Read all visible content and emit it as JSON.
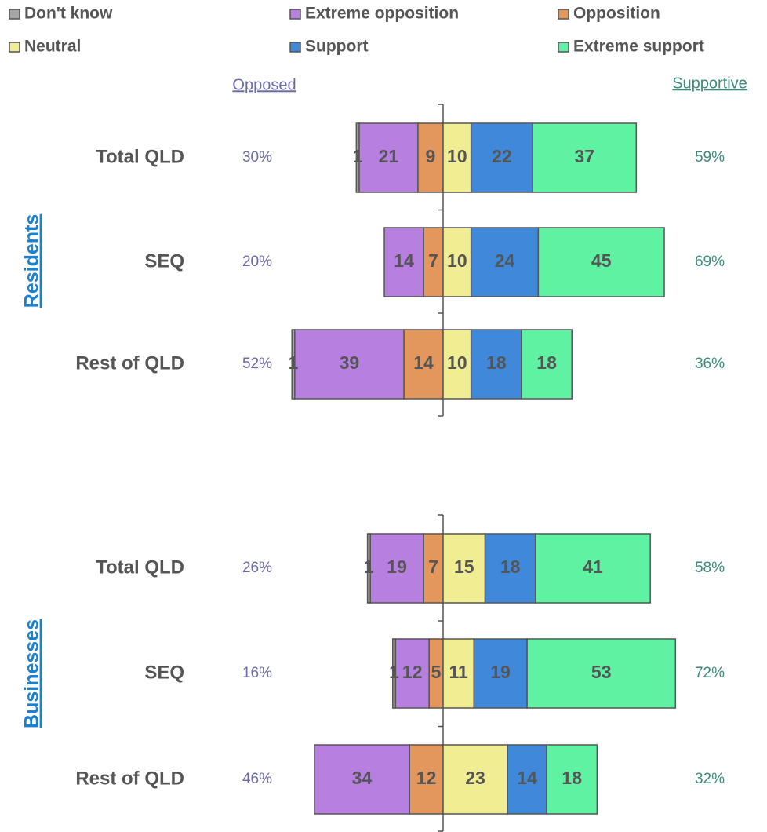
{
  "chart_data": {
    "type": "diverging_bar",
    "orientation": "horizontal",
    "groups": [
      "Residents",
      "Businesses"
    ],
    "categories": [
      "Total QLD",
      "SEQ",
      "Rest of QLD",
      "Total QLD",
      "SEQ",
      "Rest of QLD"
    ],
    "series": [
      {
        "name": "Don't know",
        "color": "#a6a6a6",
        "values": [
          1,
          null,
          1,
          1,
          1,
          null
        ]
      },
      {
        "name": "Extreme opposition",
        "color": "#b67fe0",
        "values": [
          21,
          14,
          39,
          19,
          12,
          34
        ]
      },
      {
        "name": "Opposition",
        "color": "#e4975c",
        "values": [
          9,
          7,
          14,
          7,
          5,
          12
        ]
      },
      {
        "name": "Neutral",
        "color": "#f1ed92",
        "values": [
          10,
          10,
          10,
          15,
          11,
          23
        ]
      },
      {
        "name": "Support",
        "color": "#3f88da",
        "values": [
          22,
          24,
          18,
          18,
          19,
          14
        ]
      },
      {
        "name": "Extreme support",
        "color": "#5ff2a2",
        "values": [
          37,
          45,
          18,
          41,
          53,
          18
        ]
      }
    ],
    "opposed_title": "Opposed",
    "supportive_title": "Supportive",
    "opposed": {
      "values": [
        30,
        20,
        52,
        26,
        16,
        46
      ],
      "value_labels": [
        "30%",
        "20%",
        "52%",
        "26%",
        "16%",
        "46%"
      ]
    },
    "supportive": {
      "values": [
        59,
        69,
        36,
        58,
        72,
        32
      ],
      "value_labels": [
        "59%",
        "69%",
        "36%",
        "58%",
        "72%",
        "32%"
      ]
    }
  }
}
